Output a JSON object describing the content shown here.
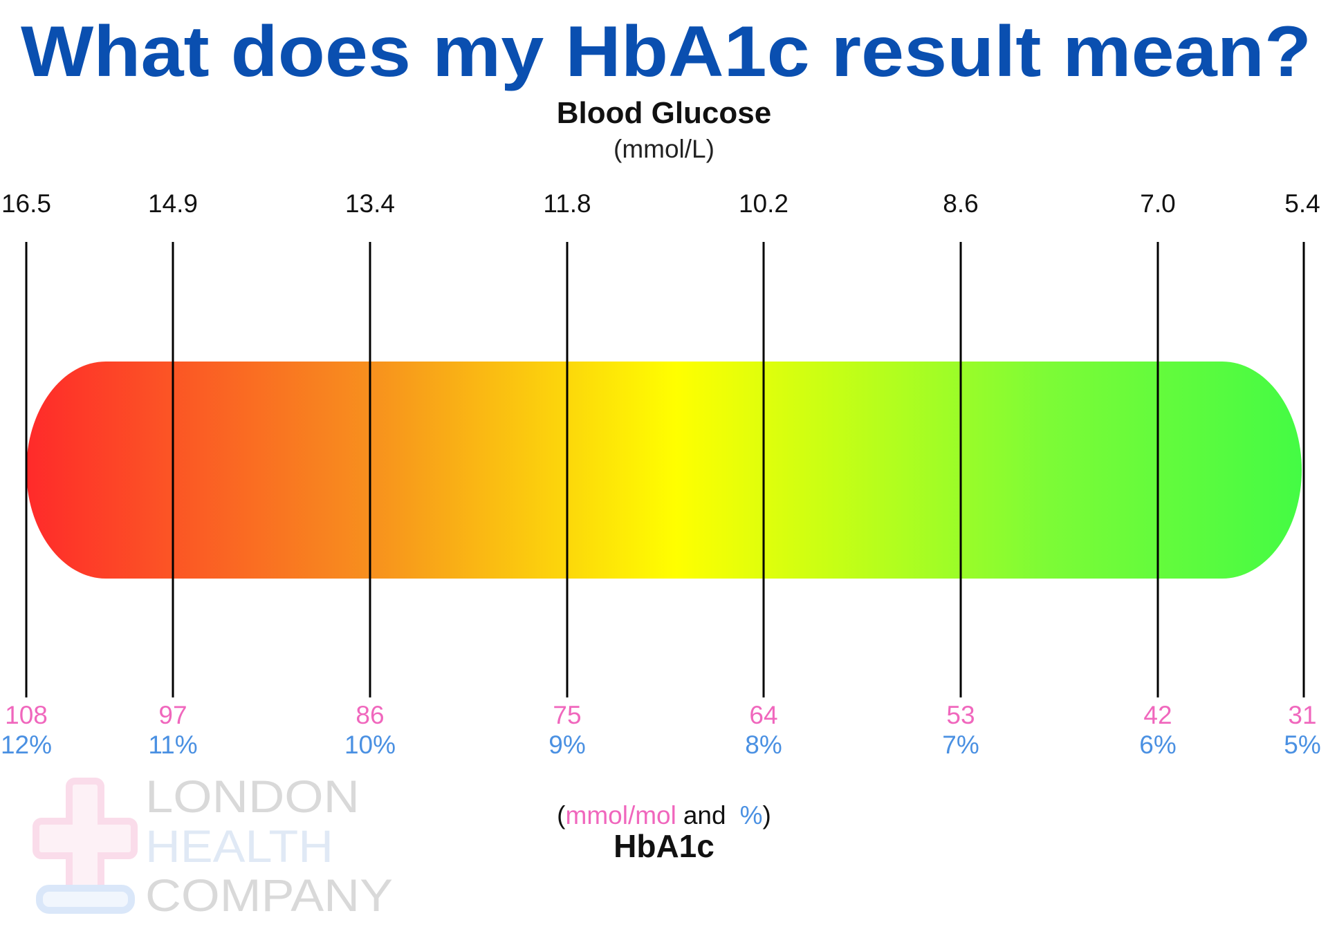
{
  "title": "What does my HbA1c result mean?",
  "colors": {
    "title": "#0a4fb0",
    "mmol_mol": "#f067bd",
    "percent": "#4a90e2",
    "text": "#111111",
    "gradient": [
      "#ff2a2a",
      "#f7901e",
      "#ffff00",
      "#c8ff14",
      "#7dfb36",
      "#44fb44"
    ]
  },
  "chart_data": {
    "type": "gauge-scale",
    "top_axis": {
      "label": "Blood Glucose",
      "unit": "(mmol/L)"
    },
    "bottom_axis": {
      "label": "HbA1c",
      "unit_parts": {
        "open": "(",
        "mmol": "mmol/mol",
        "and": "and",
        "percent": "%",
        "close": ")"
      }
    },
    "ticks": [
      {
        "glucose": "16.5",
        "mmol_mol": "108",
        "percent": "12%"
      },
      {
        "glucose": "14.9",
        "mmol_mol": "97",
        "percent": "11%"
      },
      {
        "glucose": "13.4",
        "mmol_mol": "86",
        "percent": "10%"
      },
      {
        "glucose": "11.8",
        "mmol_mol": "75",
        "percent": "9%"
      },
      {
        "glucose": "10.2",
        "mmol_mol": "64",
        "percent": "8%"
      },
      {
        "glucose": "8.6",
        "mmol_mol": "53",
        "percent": "7%"
      },
      {
        "glucose": "7.0",
        "mmol_mol": "42",
        "percent": "6%"
      },
      {
        "glucose": "5.4",
        "mmol_mol": "31",
        "percent": "5%"
      }
    ],
    "color_scale": "red (high) to green (low)"
  },
  "logo": {
    "line1": "LONDON",
    "line2": "HEALTH",
    "line3": "COMPANY"
  }
}
